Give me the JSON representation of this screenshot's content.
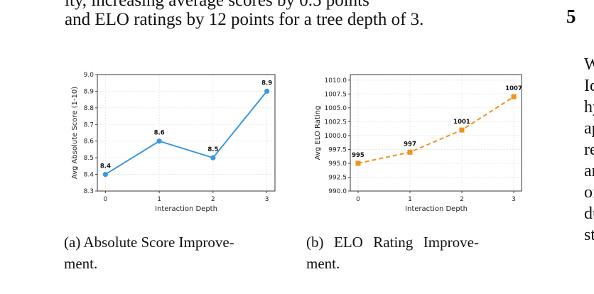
{
  "body_text": {
    "line_top_partial": "ity, increasing average scores by 0.5 points",
    "line_2": "and ELO ratings by 12 points for a tree depth of 3."
  },
  "section": {
    "number": "5",
    "right_lines": [
      "We",
      "Ide",
      "hyp",
      "app",
      "refi",
      "and",
      "offe",
      "dur",
      "stu"
    ]
  },
  "captions": {
    "a": [
      "(a) Absolute Score Improve-",
      "ment."
    ],
    "b": [
      "(b)  ELO  Rating  Improve-",
      "ment."
    ]
  },
  "colors": {
    "series_a": "#3b97e0",
    "series_b": "#f0941c"
  },
  "chart_data": [
    {
      "type": "line",
      "title": "",
      "xlabel": "Interaction Depth",
      "ylabel": "Avg Absolute Score (1-10)",
      "x": [
        0,
        1,
        2,
        3
      ],
      "values": [
        8.4,
        8.6,
        8.5,
        8.9
      ],
      "data_labels": [
        "8.4",
        "8.6",
        "8.5",
        "8.9"
      ],
      "xticks": [
        "0",
        "1",
        "2",
        "3"
      ],
      "yticks": [
        "8.3",
        "8.4",
        "8.5",
        "8.6",
        "8.7",
        "8.8",
        "8.9",
        "9.0"
      ],
      "ylim": [
        8.3,
        9.0
      ],
      "grid": true,
      "line_style": "solid",
      "marker": "circle"
    },
    {
      "type": "line",
      "title": "",
      "xlabel": "Interaction Depth",
      "ylabel": "Avg ELO Rating",
      "x": [
        0,
        1,
        2,
        3
      ],
      "values": [
        995,
        997,
        1001,
        1007
      ],
      "data_labels": [
        "995",
        "997",
        "1001",
        "1007"
      ],
      "xticks": [
        "0",
        "1",
        "2",
        "3"
      ],
      "yticks": [
        "990.0",
        "992.5",
        "995.0",
        "997.5",
        "1000.0",
        "1002.5",
        "1005.0",
        "1007.5",
        "1010.0"
      ],
      "ylim": [
        990,
        1011
      ],
      "grid": true,
      "line_style": "dashed",
      "marker": "square"
    }
  ]
}
